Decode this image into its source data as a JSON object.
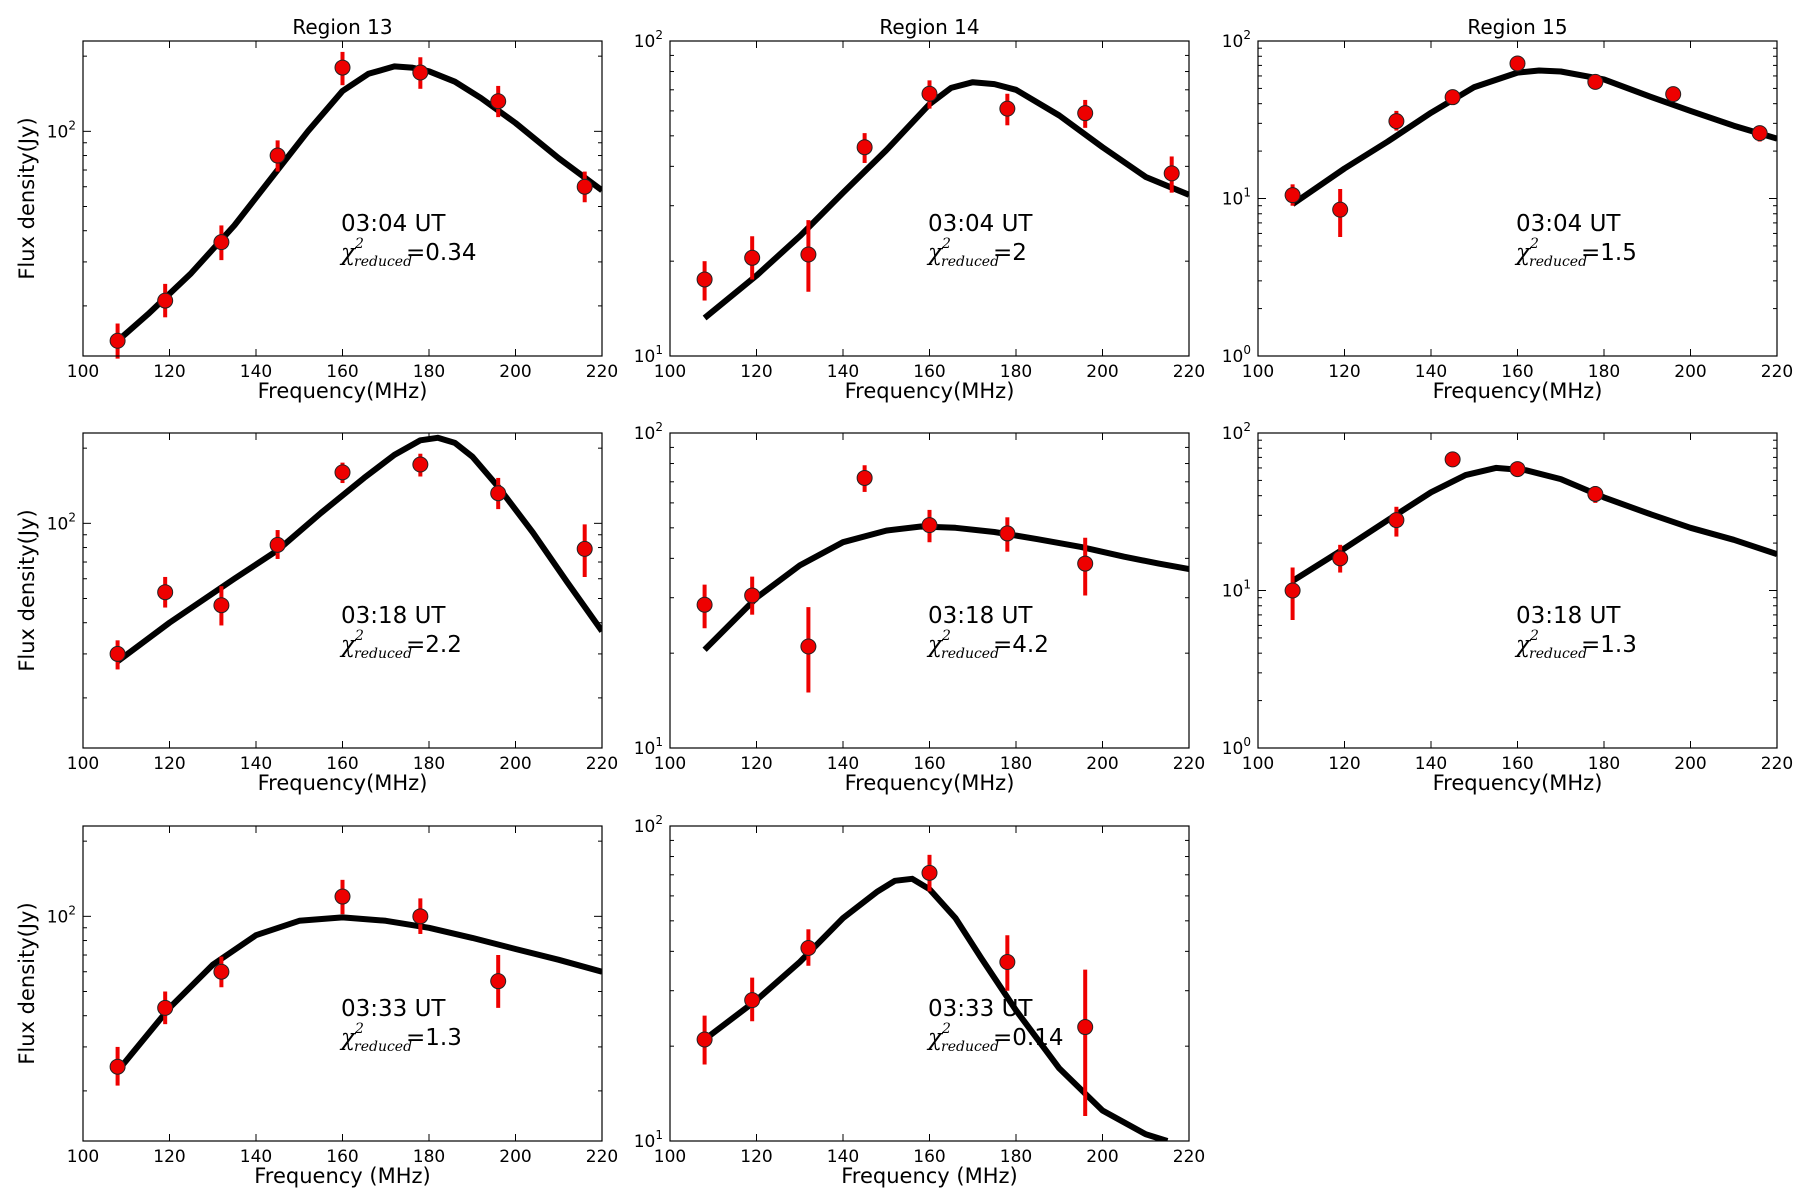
{
  "chart_data": [
    {
      "type": "scatter",
      "title": "Region 13",
      "xlabel": "Frequency(MHz)",
      "ylabel": "Flux density(Jy)",
      "xlim": [
        100,
        220
      ],
      "ylim": [
        12.6,
        230
      ],
      "yscale": "log",
      "xticks": [
        "100",
        "120",
        "140",
        "160",
        "180",
        "200",
        "220"
      ],
      "yticks": [
        {
          "value": 100,
          "label": "10",
          "exp": "2"
        }
      ],
      "time": "03:04 UT",
      "chi_label": "χ",
      "chi_sup": "2",
      "chi_sub": "reduced",
      "chi_value": "=0.34",
      "x": [
        108,
        119,
        132,
        145,
        160,
        178,
        196,
        216
      ],
      "values": [
        14.5,
        21,
        36,
        80,
        180,
        172,
        132,
        60
      ],
      "err_lo": [
        2.2,
        3,
        5.5,
        11,
        27,
        24,
        18,
        8
      ],
      "err_hi": [
        2.5,
        3.5,
        6,
        12,
        28,
        26,
        20,
        9
      ],
      "fit_x": [
        108,
        115,
        125,
        135,
        145,
        152,
        160,
        166,
        172,
        176,
        180,
        186,
        192,
        200,
        210,
        220
      ],
      "fit_y": [
        14.5,
        18.5,
        27,
        42,
        70,
        100,
        145,
        170,
        182,
        180,
        174,
        158,
        136,
        108,
        78,
        58
      ]
    },
    {
      "type": "scatter",
      "title": "Region 14",
      "xlabel": "Frequency(MHz)",
      "ylabel": "",
      "xlim": [
        100,
        220
      ],
      "ylim": [
        10,
        100
      ],
      "yscale": "log",
      "xticks": [
        "100",
        "120",
        "140",
        "160",
        "180",
        "200",
        "220"
      ],
      "yticks": [
        {
          "value": 100,
          "label": "10",
          "exp": "2"
        },
        {
          "value": 10,
          "label": "10",
          "exp": "1"
        }
      ],
      "time": "03:04 UT",
      "chi_label": "χ",
      "chi_sup": "2",
      "chi_sub": "reduced",
      "chi_value": "=2",
      "x": [
        108,
        119,
        132,
        145,
        160,
        178,
        196,
        216
      ],
      "values": [
        17.5,
        20.5,
        21,
        46,
        68,
        61,
        59,
        38
      ],
      "err_lo": [
        2.5,
        3,
        5,
        5,
        7,
        7,
        6,
        5
      ],
      "err_hi": [
        2.5,
        3.5,
        6,
        5,
        7,
        7,
        6,
        5
      ],
      "fit_x": [
        108,
        120,
        130,
        140,
        150,
        160,
        165,
        170,
        175,
        180,
        190,
        200,
        210,
        220
      ],
      "fit_y": [
        13.2,
        18,
        24,
        33,
        45,
        63,
        71,
        74,
        73,
        70,
        58,
        46,
        37,
        32.5
      ]
    },
    {
      "type": "scatter",
      "title": "Region 15",
      "xlabel": "Frequency(MHz)",
      "ylabel": "",
      "xlim": [
        100,
        220
      ],
      "ylim": [
        1,
        100
      ],
      "yscale": "log",
      "xticks": [
        "100",
        "120",
        "140",
        "160",
        "180",
        "200",
        "220"
      ],
      "yticks": [
        {
          "value": 100,
          "label": "10",
          "exp": "2"
        },
        {
          "value": 10,
          "label": "10",
          "exp": "1"
        },
        {
          "value": 1,
          "label": "10",
          "exp": "0"
        }
      ],
      "time": "03:04 UT",
      "chi_label": "χ",
      "chi_sup": "2",
      "chi_sub": "reduced",
      "chi_value": "=1.5",
      "x": [
        108,
        119,
        132,
        145,
        160,
        178,
        196,
        216
      ],
      "values": [
        10.5,
        8.5,
        31,
        44,
        72,
        55,
        46,
        26
      ],
      "err_lo": [
        1.5,
        2.8,
        4,
        3.5,
        4,
        3.5,
        3.5,
        3
      ],
      "err_hi": [
        1.8,
        3,
        5,
        3.5,
        4,
        3.5,
        3.5,
        3
      ],
      "fit_x": [
        108,
        120,
        130,
        140,
        150,
        160,
        165,
        170,
        180,
        190,
        200,
        210,
        220
      ],
      "fit_y": [
        9.2,
        15.5,
        23,
        35,
        51,
        63,
        65,
        64,
        57,
        45,
        36,
        29,
        24
      ]
    },
    {
      "type": "scatter",
      "title": "",
      "xlabel": "Frequency(MHz)",
      "ylabel": "Flux density(Jy)",
      "xlim": [
        100,
        220
      ],
      "ylim": [
        12.6,
        230
      ],
      "yscale": "log",
      "xticks": [
        "100",
        "120",
        "140",
        "160",
        "180",
        "200",
        "220"
      ],
      "yticks": [
        {
          "value": 100,
          "label": "10",
          "exp": "2"
        }
      ],
      "time": "03:18 UT",
      "chi_label": "χ",
      "chi_sup": "2",
      "chi_sub": "reduced",
      "chi_value": "=2.2",
      "x": [
        108,
        119,
        132,
        145,
        160,
        178,
        196,
        216
      ],
      "values": [
        30,
        53,
        47,
        82,
        160,
        172,
        132,
        79
      ],
      "err_lo": [
        4,
        7,
        8,
        10,
        15,
        18,
        18,
        18
      ],
      "err_hi": [
        4,
        8,
        9,
        12,
        15,
        18,
        20,
        20
      ],
      "fit_x": [
        108,
        120,
        135,
        145,
        155,
        165,
        172,
        178,
        182,
        186,
        190,
        196,
        204,
        212,
        220
      ],
      "fit_y": [
        28,
        40,
        60,
        78,
        110,
        152,
        188,
        215,
        220,
        210,
        185,
        140,
        92,
        58,
        37
      ]
    },
    {
      "type": "scatter",
      "title": "",
      "xlabel": "Frequency(MHz)",
      "ylabel": "",
      "xlim": [
        100,
        220
      ],
      "ylim": [
        10,
        100
      ],
      "yscale": "log",
      "xticks": [
        "100",
        "120",
        "140",
        "160",
        "180",
        "200",
        "220"
      ],
      "yticks": [
        {
          "value": 100,
          "label": "10",
          "exp": "2"
        },
        {
          "value": 10,
          "label": "10",
          "exp": "1"
        }
      ],
      "time": "03:18 UT",
      "chi_label": "χ",
      "chi_sup": "2",
      "chi_sub": "reduced",
      "chi_value": "=4.2",
      "x": [
        108,
        119,
        132,
        145,
        160,
        178,
        196
      ],
      "values": [
        28.5,
        30.5,
        21,
        72,
        51,
        48,
        38.5
      ],
      "err_lo": [
        4.5,
        4,
        6,
        7,
        6,
        6,
        8
      ],
      "err_hi": [
        4.5,
        4.5,
        7,
        7,
        6,
        6,
        8
      ],
      "fit_x": [
        108,
        120,
        130,
        140,
        150,
        158,
        166,
        175,
        185,
        195,
        205,
        213,
        220
      ],
      "fit_y": [
        20.5,
        30,
        38,
        45,
        49,
        50.5,
        50,
        48.5,
        46,
        43.5,
        40.5,
        38.5,
        37
      ]
    },
    {
      "type": "scatter",
      "title": "",
      "xlabel": "Frequency(MHz)",
      "ylabel": "",
      "xlim": [
        100,
        220
      ],
      "ylim": [
        1,
        100
      ],
      "yscale": "log",
      "xticks": [
        "100",
        "120",
        "140",
        "160",
        "180",
        "200",
        "220"
      ],
      "yticks": [
        {
          "value": 100,
          "label": "10",
          "exp": "2"
        },
        {
          "value": 10,
          "label": "10",
          "exp": "1"
        },
        {
          "value": 1,
          "label": "10",
          "exp": "0"
        }
      ],
      "time": "03:18 UT",
      "chi_label": "χ",
      "chi_sup": "2",
      "chi_sub": "reduced",
      "chi_value": "=1.3",
      "x": [
        108,
        119,
        132,
        145,
        160,
        178
      ],
      "values": [
        10,
        16,
        28,
        68,
        59,
        41
      ],
      "err_lo": [
        3.5,
        3,
        6,
        3,
        3,
        5
      ],
      "err_hi": [
        4,
        3.5,
        6,
        3,
        3,
        5
      ],
      "fit_x": [
        108,
        120,
        130,
        140,
        148,
        155,
        162,
        170,
        180,
        190,
        200,
        210,
        220
      ],
      "fit_y": [
        11.5,
        18.5,
        28,
        42,
        54,
        60,
        58,
        51,
        39,
        31,
        25,
        21,
        17
      ]
    },
    {
      "type": "scatter",
      "title": "",
      "xlabel": "Frequency (MHz)",
      "ylabel": "Flux density(Jy)",
      "xlim": [
        100,
        220
      ],
      "ylim": [
        12.6,
        230
      ],
      "yscale": "log",
      "xticks": [
        "100",
        "120",
        "140",
        "160",
        "180",
        "200",
        "220"
      ],
      "yticks": [
        {
          "value": 100,
          "label": "10",
          "exp": "2"
        }
      ],
      "time": "03:33 UT",
      "chi_label": "χ",
      "chi_sup": "2",
      "chi_sub": "reduced",
      "chi_value": "=1.3",
      "x": [
        108,
        119,
        132,
        160,
        178,
        196
      ],
      "values": [
        25,
        43,
        60,
        120,
        100,
        55
      ],
      "err_lo": [
        4,
        6,
        8,
        18,
        15,
        12
      ],
      "err_hi": [
        5,
        7,
        9,
        20,
        18,
        15
      ],
      "fit_x": [
        108,
        120,
        130,
        140,
        150,
        160,
        170,
        180,
        190,
        200,
        210,
        220
      ],
      "fit_y": [
        24,
        43,
        64,
        84,
        96,
        99,
        96,
        90,
        82,
        74,
        67,
        60
      ]
    },
    {
      "type": "scatter",
      "title": "",
      "xlabel": "Frequency (MHz)",
      "ylabel": "",
      "xlim": [
        100,
        220
      ],
      "ylim": [
        10,
        100
      ],
      "yscale": "log",
      "xticks": [
        "100",
        "120",
        "140",
        "160",
        "180",
        "200",
        "220"
      ],
      "yticks": [
        {
          "value": 100,
          "label": "10",
          "exp": "2"
        },
        {
          "value": 10,
          "label": "10",
          "exp": "1"
        }
      ],
      "time": "03:33 UT",
      "chi_label": "χ",
      "chi_sup": "2",
      "chi_sub": "reduced",
      "chi_value": "=0.14",
      "x": [
        108,
        119,
        132,
        160,
        178,
        196
      ],
      "values": [
        21,
        28,
        41,
        71,
        37,
        23
      ],
      "err_lo": [
        3.5,
        4,
        5,
        9,
        7,
        11
      ],
      "err_hi": [
        4,
        5,
        6,
        10,
        8,
        12
      ],
      "fit_x": [
        108,
        120,
        130,
        140,
        148,
        152,
        156,
        160,
        166,
        172,
        180,
        190,
        200,
        210,
        215
      ],
      "fit_y": [
        21,
        28,
        37,
        51,
        62,
        67,
        68,
        63,
        51,
        38,
        26,
        17,
        12.5,
        10.5,
        10
      ]
    }
  ]
}
